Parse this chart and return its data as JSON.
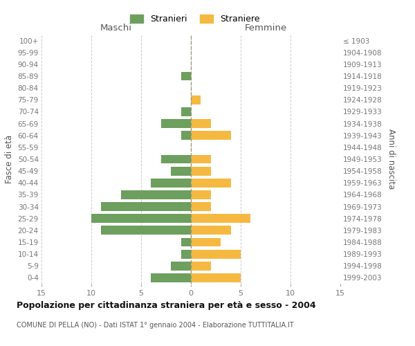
{
  "age_groups_bottom_to_top": [
    "0-4",
    "5-9",
    "10-14",
    "15-19",
    "20-24",
    "25-29",
    "30-34",
    "35-39",
    "40-44",
    "45-49",
    "50-54",
    "55-59",
    "60-64",
    "65-69",
    "70-74",
    "75-79",
    "80-84",
    "85-89",
    "90-94",
    "95-99",
    "100+"
  ],
  "birth_years_bottom_to_top": [
    "1999-2003",
    "1994-1998",
    "1989-1993",
    "1984-1988",
    "1979-1983",
    "1974-1978",
    "1969-1973",
    "1964-1968",
    "1959-1963",
    "1954-1958",
    "1949-1953",
    "1944-1948",
    "1939-1943",
    "1934-1938",
    "1929-1933",
    "1924-1928",
    "1919-1923",
    "1914-1918",
    "1909-1913",
    "1904-1908",
    "≤ 1903"
  ],
  "males_bottom_to_top": [
    4,
    2,
    1,
    1,
    9,
    10,
    9,
    7,
    4,
    2,
    3,
    0,
    1,
    3,
    1,
    0,
    0,
    1,
    0,
    0,
    0
  ],
  "females_bottom_to_top": [
    5,
    2,
    5,
    3,
    4,
    6,
    2,
    2,
    4,
    2,
    2,
    0,
    4,
    2,
    0,
    1,
    0,
    0,
    0,
    0,
    0
  ],
  "male_color": "#6d9f5e",
  "female_color": "#f5b942",
  "background_color": "#ffffff",
  "grid_color": "#cccccc",
  "title": "Popolazione per cittadinanza straniera per età e sesso - 2004",
  "subtitle": "COMUNE DI PELLA (NO) - Dati ISTAT 1° gennaio 2004 - Elaborazione TUTTITALIA.IT",
  "xlabel_left": "Maschi",
  "xlabel_right": "Femmine",
  "ylabel_left": "Fasce di età",
  "ylabel_right": "Anni di nascita",
  "legend_male": "Stranieri",
  "legend_female": "Straniere",
  "xlim": 15,
  "figsize": [
    6.0,
    5.0
  ],
  "dpi": 100
}
